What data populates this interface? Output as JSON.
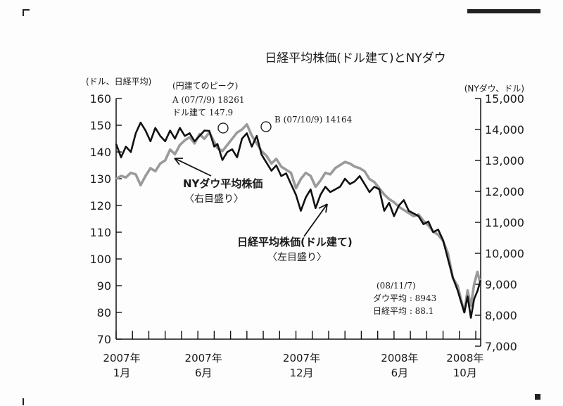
{
  "chart_data": {
    "type": "line",
    "title": "日経平均株価(ドル建て)とNYダウ",
    "left_axis": {
      "label": "(ドル、日経平均)",
      "ylim": [
        70,
        160
      ],
      "ticks": [
        "70",
        "80",
        "90",
        "100",
        "110",
        "120",
        "130",
        "140",
        "150",
        "160"
      ]
    },
    "right_axis": {
      "label": "(NYダウ、ドル)",
      "ylim": [
        7000,
        15000
      ],
      "ticks": [
        "7,000",
        "8,000",
        "9,000",
        "10,000",
        "11,000",
        "12,000",
        "13,000",
        "14,000",
        "15,000"
      ]
    },
    "x_ticks": [
      {
        "month": 0,
        "year": "2007年",
        "mon": "1月"
      },
      {
        "month": 5,
        "year": "2007年",
        "mon": "6月"
      },
      {
        "month": 11,
        "year": "2007年",
        "mon": "12月"
      },
      {
        "month": 17,
        "year": "2008年",
        "mon": "6月"
      },
      {
        "month": 21,
        "year": "2008年",
        "mon": "10月"
      }
    ],
    "x_range_months": [
      0,
      22.3
    ],
    "series": [
      {
        "name": "日経平均株価(ドル建て)",
        "sublabel": "〈左目盛り〉",
        "axis": "left",
        "color": "#111111",
        "x": [
          0,
          0.3,
          0.6,
          0.9,
          1.2,
          1.5,
          1.8,
          2.1,
          2.4,
          2.7,
          3.0,
          3.3,
          3.6,
          3.9,
          4.2,
          4.5,
          4.8,
          5.1,
          5.4,
          5.7,
          6.0,
          6.2,
          6.5,
          6.8,
          7.1,
          7.4,
          7.7,
          8.0,
          8.3,
          8.6,
          8.9,
          9.2,
          9.5,
          9.8,
          10.1,
          10.4,
          10.7,
          11.0,
          11.3,
          11.6,
          11.9,
          12.2,
          12.5,
          12.8,
          13.1,
          13.4,
          13.7,
          14.0,
          14.3,
          14.6,
          14.9,
          15.2,
          15.5,
          15.8,
          16.1,
          16.4,
          16.7,
          17.0,
          17.3,
          17.6,
          17.9,
          18.2,
          18.5,
          18.8,
          19.1,
          19.4,
          19.7,
          20.0,
          20.3,
          20.6,
          20.9,
          21.1,
          21.3,
          21.5,
          21.7,
          21.9,
          22.1,
          22.3
        ],
        "values": [
          143,
          138,
          142,
          140,
          147,
          151,
          148,
          144,
          149,
          146,
          144,
          148,
          145,
          149,
          146,
          147,
          144,
          146,
          148,
          147.9,
          142,
          143,
          137,
          140,
          141,
          138,
          145,
          147,
          142,
          146,
          139,
          136,
          133,
          135,
          131,
          132,
          128,
          124,
          118,
          123,
          126,
          119,
          124,
          127,
          125,
          126,
          127,
          130,
          128,
          129,
          131,
          128,
          125,
          127,
          126,
          118,
          121,
          116,
          120,
          122,
          118,
          117,
          116,
          113,
          114,
          110,
          111,
          107,
          100,
          93,
          88.1,
          84,
          80,
          86,
          78,
          85,
          88,
          92
        ]
      },
      {
        "name": "NYダウ平均株価",
        "sublabel": "〈右目盛り〉",
        "axis": "right",
        "color": "#9a9a9a",
        "x": [
          0,
          0.3,
          0.6,
          0.9,
          1.2,
          1.5,
          1.8,
          2.1,
          2.4,
          2.7,
          3.0,
          3.3,
          3.6,
          3.9,
          4.2,
          4.5,
          4.8,
          5.1,
          5.4,
          5.7,
          6.0,
          6.2,
          6.5,
          6.8,
          7.1,
          7.4,
          7.7,
          8.0,
          8.3,
          8.6,
          8.9,
          9.2,
          9.5,
          9.8,
          10.1,
          10.4,
          10.7,
          11.0,
          11.3,
          11.6,
          11.9,
          12.2,
          12.5,
          12.8,
          13.1,
          13.4,
          13.7,
          14.0,
          14.3,
          14.6,
          14.9,
          15.2,
          15.5,
          15.8,
          16.1,
          16.4,
          16.7,
          17.0,
          17.3,
          17.6,
          17.9,
          18.2,
          18.5,
          18.8,
          19.1,
          19.4,
          19.7,
          20.0,
          20.3,
          20.6,
          20.9,
          21.1,
          21.3,
          21.5,
          21.7,
          21.9,
          22.1,
          22.3
        ],
        "values": [
          12400,
          12500,
          12450,
          12600,
          12550,
          12200,
          12500,
          12750,
          12650,
          12900,
          13000,
          13350,
          13200,
          13500,
          13650,
          13750,
          13550,
          13850,
          13700,
          13900,
          13600,
          13400,
          13300,
          13500,
          13700,
          13900,
          14000,
          14164,
          13800,
          13550,
          13300,
          13150,
          12900,
          13050,
          12800,
          12700,
          12600,
          12100,
          12400,
          12600,
          12500,
          12150,
          12350,
          12600,
          12550,
          12750,
          12850,
          12950,
          12900,
          12800,
          12750,
          12650,
          12400,
          12300,
          12100,
          11900,
          11750,
          11650,
          11500,
          11400,
          11300,
          11200,
          11250,
          11050,
          10900,
          10700,
          10600,
          10400,
          10000,
          9200,
          8943,
          8500,
          8100,
          8800,
          8300,
          9000,
          9400,
          9000
        ]
      }
    ],
    "annotations": [
      {
        "lines": [
          "(円建てのピーク)",
          "A (07/7/9) 18261",
          "ドル建て 147.9"
        ],
        "at_month": 5.7
      },
      {
        "lines": [
          "B (07/10/9) 14164"
        ],
        "at_month": 8.0
      },
      {
        "lines": [
          "(08/11/7)",
          "ダウ平均 : 8943",
          "日経平均 : 88.1"
        ]
      }
    ]
  }
}
